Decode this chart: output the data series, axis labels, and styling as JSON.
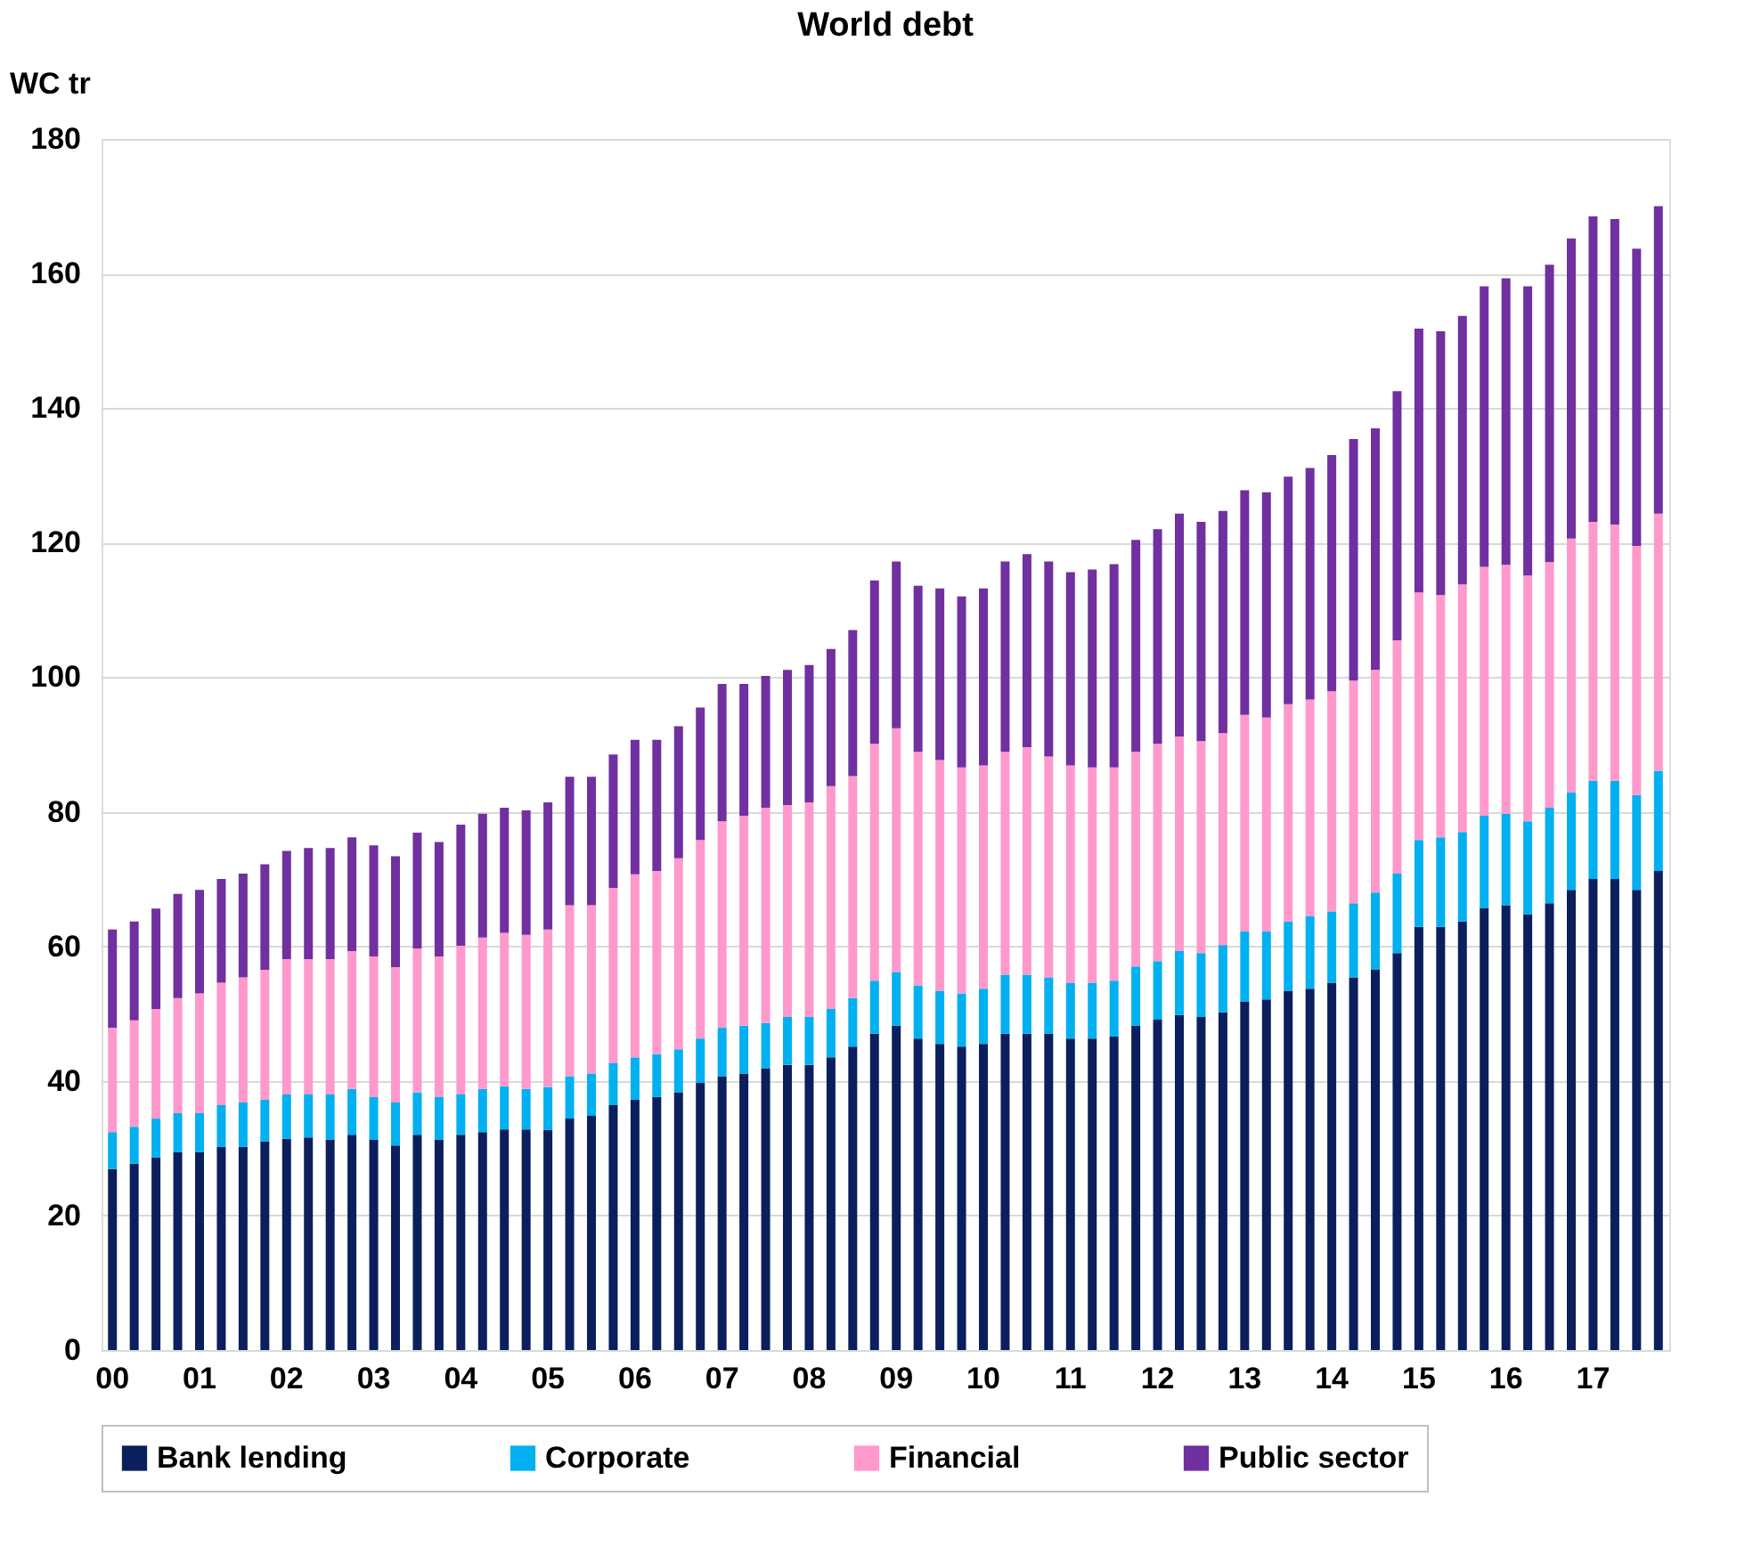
{
  "chart_data": {
    "type": "bar",
    "title": "World debt",
    "ylabel": "WC tr",
    "stacked": true,
    "categories": [
      "00",
      null,
      null,
      null,
      "01",
      null,
      null,
      null,
      "02",
      null,
      null,
      null,
      "03",
      null,
      null,
      null,
      "04",
      null,
      null,
      null,
      "05",
      null,
      null,
      null,
      "06",
      null,
      null,
      null,
      "07",
      null,
      null,
      null,
      "08",
      null,
      null,
      null,
      "09",
      null,
      null,
      null,
      "10",
      null,
      null,
      null,
      "11",
      null,
      null,
      null,
      "12",
      null,
      null,
      null,
      "13",
      null,
      null,
      null,
      "14",
      null,
      null,
      null,
      "15",
      null,
      null,
      null,
      "16",
      null,
      null,
      null,
      "17",
      null,
      null,
      null
    ],
    "series": [
      {
        "name": "Bank lending",
        "color": "#0a1f5c",
        "values": [
          26.9,
          27.7,
          28.6,
          29.4,
          29.4,
          30.2,
          30.2,
          31.0,
          31.4,
          31.6,
          31.3,
          32.0,
          31.3,
          30.4,
          32.0,
          31.3,
          32.0,
          32.4,
          32.8,
          32.8,
          32.7,
          34.4,
          34.8,
          36.4,
          37.2,
          37.6,
          38.3,
          39.7,
          40.7,
          41.1,
          41.9,
          42.4,
          42.4,
          43.5,
          45.1,
          47.0,
          48.2,
          46.3,
          45.5,
          45.1,
          45.5,
          47.0,
          47.0,
          47.0,
          46.3,
          46.3,
          46.6,
          48.2,
          49.1,
          49.8,
          49.5,
          50.2,
          51.8,
          52.1,
          53.4,
          53.7,
          54.6,
          55.4,
          56.5,
          59.0,
          62.9,
          62.9,
          63.7,
          65.7,
          66.1,
          64.8,
          66.4,
          68.4,
          70.0,
          70.0,
          68.4,
          71.2
        ]
      },
      {
        "name": "Corporate",
        "color": "#00b0f0",
        "values": [
          5.5,
          5.5,
          5.8,
          5.8,
          5.8,
          6.2,
          6.6,
          6.2,
          6.6,
          6.4,
          6.7,
          6.8,
          6.3,
          6.4,
          6.3,
          6.3,
          6.0,
          6.4,
          6.4,
          6.0,
          6.4,
          6.3,
          6.3,
          6.3,
          6.3,
          6.4,
          6.4,
          6.6,
          7.2,
          7.1,
          6.7,
          7.1,
          7.1,
          7.2,
          7.2,
          7.9,
          8.0,
          7.9,
          7.9,
          7.9,
          8.2,
          8.8,
          8.8,
          8.4,
          8.3,
          8.3,
          8.3,
          8.8,
          8.7,
          9.5,
          9.5,
          10.0,
          10.4,
          10.1,
          10.3,
          10.8,
          10.6,
          11.0,
          11.5,
          11.8,
          12.9,
          13.3,
          13.3,
          13.7,
          13.6,
          13.8,
          14.2,
          14.5,
          14.6,
          14.6,
          14.1,
          14.9
        ]
      },
      {
        "name": "Financial",
        "color": "#ff99cc",
        "values": [
          15.5,
          15.8,
          16.3,
          17.1,
          17.8,
          18.2,
          18.6,
          19.3,
          20.1,
          20.1,
          20.1,
          20.5,
          20.9,
          20.1,
          21.4,
          20.9,
          22.1,
          22.5,
          22.8,
          22.9,
          23.4,
          25.4,
          25.0,
          26.0,
          27.2,
          27.2,
          28.4,
          29.5,
          30.7,
          31.2,
          32.0,
          31.5,
          31.9,
          33.1,
          33.0,
          35.2,
          36.2,
          34.7,
          34.3,
          33.6,
          33.2,
          33.1,
          33.8,
          32.8,
          32.3,
          32.0,
          31.7,
          31.9,
          32.3,
          31.9,
          31.5,
          31.5,
          32.2,
          31.8,
          32.3,
          32.2,
          32.7,
          33.1,
          33.1,
          34.7,
          36.8,
          36.0,
          36.8,
          37.0,
          37.0,
          36.5,
          36.5,
          37.7,
          38.5,
          38.1,
          37.0,
          38.2
        ]
      },
      {
        "name": "Public sector",
        "color": "#7030a0",
        "values": [
          14.6,
          14.7,
          14.9,
          15.5,
          15.4,
          15.4,
          15.4,
          15.7,
          16.1,
          16.5,
          16.5,
          16.9,
          16.5,
          16.5,
          17.2,
          17.0,
          18.0,
          18.4,
          18.6,
          18.5,
          18.9,
          19.1,
          19.1,
          19.8,
          20.0,
          19.5,
          19.6,
          19.7,
          20.4,
          19.6,
          19.6,
          20.1,
          20.4,
          20.4,
          21.7,
          24.3,
          24.8,
          24.7,
          25.5,
          25.4,
          26.3,
          28.3,
          28.7,
          29.0,
          28.7,
          29.4,
          30.2,
          31.5,
          31.9,
          33.1,
          32.6,
          33.0,
          33.4,
          33.5,
          33.8,
          34.4,
          35.1,
          35.9,
          35.9,
          37.0,
          39.2,
          39.2,
          39.9,
          41.7,
          42.6,
          43.0,
          44.2,
          44.6,
          45.4,
          45.4,
          44.2,
          45.7
        ]
      }
    ],
    "ylim": [
      0,
      180
    ],
    "yticks": [
      0,
      20,
      40,
      60,
      80,
      100,
      120,
      140,
      160,
      180
    ],
    "grid": "y",
    "legend": "bottom"
  }
}
